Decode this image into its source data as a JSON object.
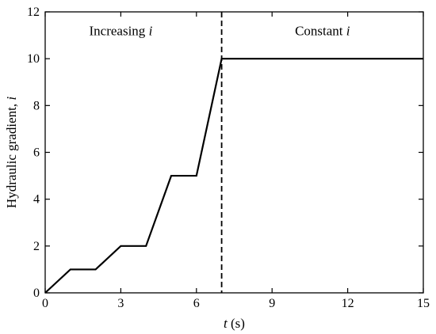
{
  "chart_data": {
    "type": "line",
    "xlabel_var": "t",
    "xlabel_unit": " (s)",
    "ylabel_text": "Hydraulic gradient, ",
    "ylabel_var": "i",
    "xlim": [
      0,
      15
    ],
    "ylim": [
      0,
      12
    ],
    "xticks": [
      0,
      3,
      6,
      9,
      12,
      15
    ],
    "yticks": [
      0,
      2,
      4,
      6,
      8,
      10,
      12
    ],
    "grid": false,
    "series": [
      {
        "x": [
          0,
          1,
          2,
          3,
          4,
          5,
          6,
          7,
          15
        ],
        "y": [
          0,
          1,
          1,
          2,
          2,
          5,
          5,
          10,
          10
        ],
        "color": "#000000"
      }
    ],
    "vline": {
      "x": 7,
      "style": "dashed",
      "color": "#000000"
    },
    "annotations": [
      {
        "text": "Increasing ",
        "var": "i",
        "x": 3.0,
        "y": 11.0
      },
      {
        "text": "Constant ",
        "var": "i",
        "x": 11.0,
        "y": 11.0
      }
    ]
  }
}
